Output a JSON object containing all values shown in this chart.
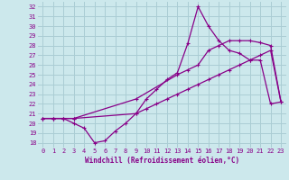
{
  "xlabel": "Windchill (Refroidissement éolien,°C)",
  "background_color": "#cce8ec",
  "grid_color": "#aacdd4",
  "line_color": "#880088",
  "xlim": [
    -0.5,
    23.5
  ],
  "ylim": [
    17.5,
    32.5
  ],
  "xticks": [
    0,
    1,
    2,
    3,
    4,
    5,
    6,
    7,
    8,
    9,
    10,
    11,
    12,
    13,
    14,
    15,
    16,
    17,
    18,
    19,
    20,
    21,
    22,
    23
  ],
  "yticks": [
    18,
    19,
    20,
    21,
    22,
    23,
    24,
    25,
    26,
    27,
    28,
    29,
    30,
    31,
    32
  ],
  "line1_x": [
    0,
    1,
    2,
    3,
    4,
    5,
    6,
    7,
    8,
    9,
    10,
    11,
    12,
    13,
    14,
    15,
    16,
    17,
    18,
    19,
    20,
    21,
    22,
    23
  ],
  "line1_y": [
    20.5,
    20.5,
    20.5,
    20.0,
    19.5,
    18.0,
    18.2,
    19.2,
    20.0,
    21.0,
    22.5,
    23.5,
    24.5,
    25.2,
    28.2,
    32.0,
    30.0,
    28.5,
    27.5,
    27.2,
    26.5,
    26.5,
    22.0,
    22.2
  ],
  "line2_x": [
    0,
    1,
    2,
    3,
    9,
    13,
    14,
    15,
    16,
    17,
    18,
    19,
    20,
    21,
    22,
    23
  ],
  "line2_y": [
    20.5,
    20.5,
    20.5,
    20.5,
    22.5,
    25.0,
    25.5,
    26.0,
    27.5,
    28.0,
    28.5,
    28.5,
    28.5,
    28.3,
    28.0,
    22.2
  ],
  "line3_x": [
    0,
    1,
    2,
    3,
    9,
    10,
    11,
    12,
    13,
    14,
    15,
    16,
    17,
    18,
    19,
    20,
    21,
    22,
    23
  ],
  "line3_y": [
    20.5,
    20.5,
    20.5,
    20.5,
    21.0,
    21.5,
    22.0,
    22.5,
    23.0,
    23.5,
    24.0,
    24.5,
    25.0,
    25.5,
    26.0,
    26.5,
    27.0,
    27.5,
    22.2
  ]
}
